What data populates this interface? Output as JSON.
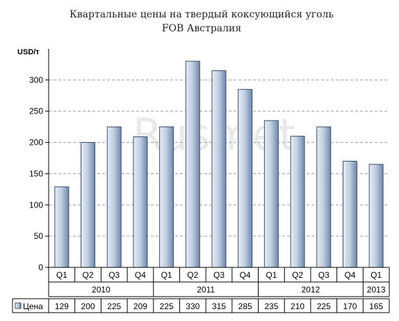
{
  "watermark": "Rusmet",
  "chart_data": {
    "type": "bar",
    "title": "Квартальные цены на твердый коксующийся уголь",
    "subtitle": "FOB Австралия",
    "ylabel": "USD/т",
    "ylim": [
      0,
      350
    ],
    "yticks": [
      "0",
      "50",
      "100",
      "150",
      "200",
      "250",
      "300"
    ],
    "grid": true,
    "categories": [
      "Q1",
      "Q2",
      "Q3",
      "Q4",
      "Q1",
      "Q2",
      "Q3",
      "Q4",
      "Q1",
      "Q2",
      "Q3",
      "Q4",
      "Q1"
    ],
    "years": [
      {
        "label": "2010",
        "count": 4
      },
      {
        "label": "2011",
        "count": 4
      },
      {
        "label": "2012",
        "count": 4
      },
      {
        "label": "2013",
        "count": 1
      }
    ],
    "series": [
      {
        "name": "Цена",
        "values": [
          129,
          200,
          225,
          209,
          225,
          330,
          315,
          285,
          235,
          210,
          225,
          170,
          165
        ]
      }
    ],
    "colors": {
      "bar_light": "#e4ecf6",
      "bar_dark": "#6f89ad",
      "bar_stroke": "#3d4f66",
      "grid": "#9a9a9a"
    }
  }
}
